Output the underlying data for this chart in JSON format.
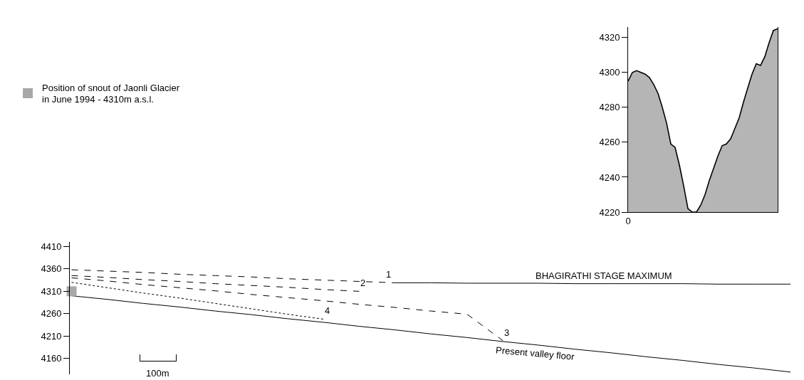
{
  "chart_data": [
    {
      "type": "area",
      "categories": [
        "0",
        null,
        null,
        null,
        null,
        null,
        null,
        null,
        null,
        null,
        null,
        null,
        null,
        null,
        null,
        null,
        null,
        null,
        null,
        null,
        null,
        null,
        null,
        null,
        null,
        null,
        null,
        null,
        null,
        null,
        null,
        null,
        null,
        null,
        null,
        null
      ],
      "ylim": [
        4220,
        4326
      ],
      "yticks": [
        4220,
        4240,
        4260,
        4280,
        4300,
        4320
      ],
      "grid": false,
      "series": [
        {
          "color": "#b5b5b5",
          "values": [
            4295,
            4300,
            4301,
            4300,
            4299,
            4297,
            4293,
            4288,
            4280,
            4271,
            4259,
            4257,
            4247,
            4235,
            4222,
            4220,
            4220,
            4224,
            4230,
            4238,
            4245,
            4252,
            4258,
            4259,
            4262,
            4268,
            4274,
            4283,
            4291,
            4299,
            4305,
            4304,
            4309,
            4317,
            4324,
            4325
          ]
        }
      ]
    },
    {
      "type": "line",
      "categories": [
        null,
        null,
        null,
        null,
        null,
        null,
        null,
        null,
        null,
        null,
        null,
        null,
        null,
        null,
        null,
        null,
        null,
        null,
        null,
        null,
        null
      ],
      "ylim": [
        4125,
        4420
      ],
      "yticks": [
        4160,
        4210,
        4260,
        4310,
        4360,
        4410
      ],
      "grid": false,
      "tick_labels": "y",
      "legend": "top left",
      "annotations": [
        "BHAGIRATHI STAGE MAXIMUM",
        "Present valley floor",
        "100m"
      ],
      "series": [
        {
          "color": "#000000",
          "line_style": "dashed",
          "values": [
            4358,
            4355,
            4352,
            4348,
            4345,
            4342,
            4338,
            4335,
            4332,
            4329,
            null,
            null,
            null,
            null,
            null,
            null,
            null,
            null,
            null,
            null,
            null
          ]
        },
        {
          "name": "1",
          "color": "#000000",
          "line_style": "solid",
          "values": [
            null,
            null,
            null,
            null,
            null,
            null,
            null,
            null,
            null,
            4329,
            4329,
            4328,
            4328,
            4328,
            4327,
            4327,
            4327,
            4327,
            4326,
            4326,
            4326
          ]
        },
        {
          "name": "2",
          "color": "#000000",
          "line_style": "dashed",
          "values": [
            4345,
            4341,
            4336,
            4332,
            4327,
            4323,
            4319,
            4314,
            4310,
            null,
            null,
            null,
            null,
            null,
            null,
            null,
            null,
            null,
            null,
            null,
            null
          ]
        },
        {
          "name": "3",
          "color": "#000000",
          "line_style": "dashed",
          "values": [
            4340,
            4333,
            4325,
            4318,
            4311,
            4303,
            4296,
            4289,
            4281,
            4274,
            4266,
            4259,
            4200,
            null,
            null,
            null,
            null,
            null,
            null,
            null,
            null
          ]
        },
        {
          "name": "4",
          "color": "#000000",
          "line_style": "dotted",
          "values": [
            4330,
            4318,
            4306,
            4295,
            4283,
            4271,
            4259,
            4248,
            null,
            null,
            null,
            null,
            null,
            null,
            null,
            null,
            null,
            null,
            null,
            null,
            null
          ]
        },
        {
          "color": "#000000",
          "line_style": "solid",
          "values": [
            4300,
            4292,
            4283,
            4275,
            4266,
            4258,
            4249,
            4241,
            4232,
            4224,
            4215,
            4207,
            4198,
            4190,
            4181,
            4173,
            4164,
            4156,
            4147,
            4139,
            4130
          ]
        },
        {
          "name": "Position of snout of Jaonli Glacier\nin June 1994 - 4310m a.s.l.",
          "type": "scatter",
          "marker": "square",
          "color": "#a8a8a8",
          "values": [
            4310,
            null,
            null,
            null,
            null,
            null,
            null,
            null,
            null,
            null,
            null,
            null,
            null,
            null,
            null,
            null,
            null,
            null,
            null,
            null,
            null
          ]
        }
      ]
    }
  ]
}
